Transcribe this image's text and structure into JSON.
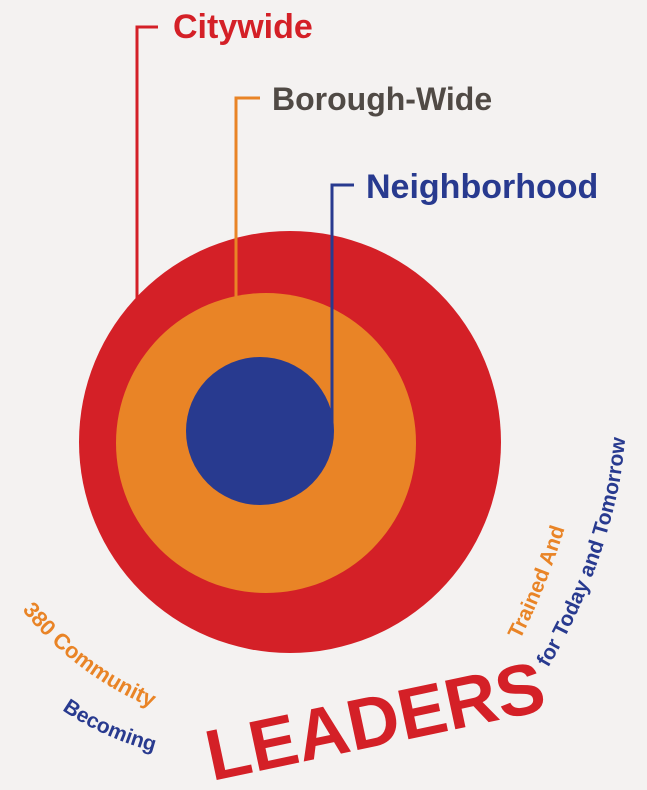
{
  "colors": {
    "background": "#f4f2f1",
    "red": "#d42027",
    "orange": "#e98426",
    "blue": "#283a8f",
    "gray": "#504a45"
  },
  "levels": {
    "citywide": "Citywide",
    "borough": "Borough-Wide",
    "neighborhood": "Neighborhood"
  },
  "caption": {
    "line_380": "380 Community",
    "becoming": "Becoming",
    "leaders": "LEADERS",
    "trained_and": "Trained And",
    "for_today": "for Today and Tomorrow"
  }
}
